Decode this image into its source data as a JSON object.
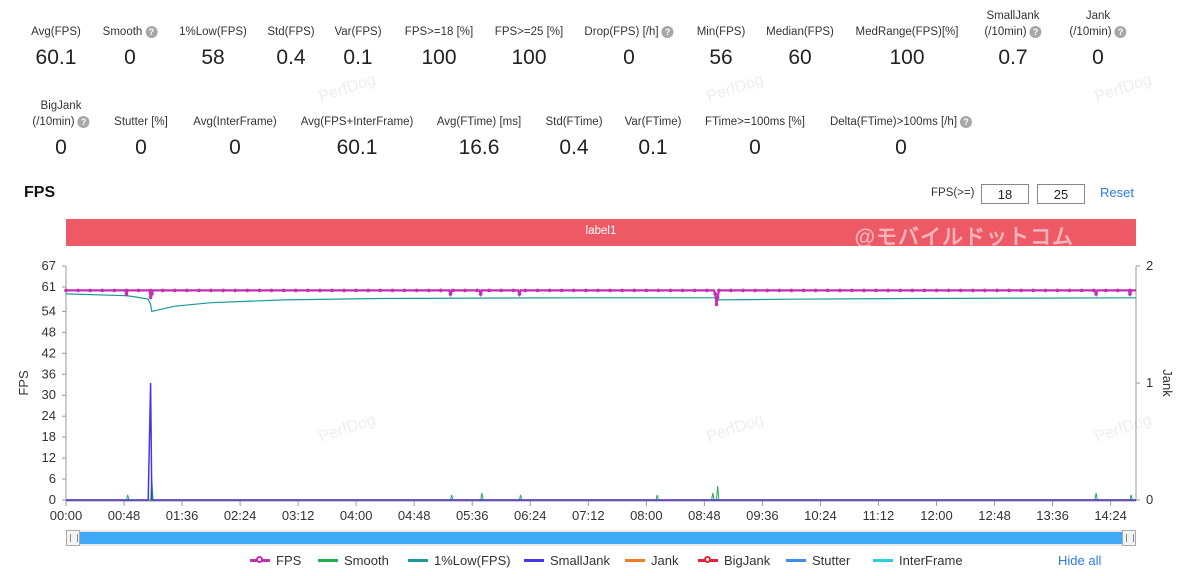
{
  "stats_row1": [
    {
      "label": "Avg(FPS)",
      "value": "60.1",
      "help": false
    },
    {
      "label": "Smooth",
      "value": "0",
      "help": true
    },
    {
      "label": "1%Low(FPS)",
      "value": "58",
      "help": false
    },
    {
      "label": "Std(FPS)",
      "value": "0.4",
      "help": false
    },
    {
      "label": "Var(FPS)",
      "value": "0.1",
      "help": false
    },
    {
      "label": "FPS>=18 [%]",
      "value": "100",
      "help": false
    },
    {
      "label": "FPS>=25 [%]",
      "value": "100",
      "help": false
    },
    {
      "label": "Drop(FPS) [/h]",
      "value": "0",
      "help": true
    },
    {
      "label": "Min(FPS)",
      "value": "56",
      "help": false
    },
    {
      "label": "Median(FPS)",
      "value": "60",
      "help": false
    },
    {
      "label": "MedRange(FPS)[%]",
      "value": "100",
      "help": false
    },
    {
      "label": "SmallJank",
      "label2": "(/10min)",
      "value": "0.7",
      "help": true
    },
    {
      "label": "Jank",
      "label2": "(/10min)",
      "value": "0",
      "help": true
    }
  ],
  "stats_row2": [
    {
      "label": "BigJank",
      "label2": "(/10min)",
      "value": "0",
      "help": true
    },
    {
      "label": "Stutter [%]",
      "value": "0",
      "help": false
    },
    {
      "label": "Avg(InterFrame)",
      "value": "0",
      "help": false
    },
    {
      "label": "Avg(FPS+InterFrame)",
      "value": "60.1",
      "help": false
    },
    {
      "label": "Avg(FTime) [ms]",
      "value": "16.6",
      "help": false
    },
    {
      "label": "Std(FTime)",
      "value": "0.4",
      "help": false
    },
    {
      "label": "Var(FTime)",
      "value": "0.1",
      "help": false
    },
    {
      "label": "FTime>=100ms [%]",
      "value": "0",
      "help": false
    },
    {
      "label": "Delta(FTime)>100ms [/h]",
      "value": "0",
      "help": true
    }
  ],
  "help_glyph": "?",
  "section_title": "FPS",
  "threshold": {
    "label": "FPS(>=)",
    "value1": "18",
    "value2": "25",
    "reset_label": "Reset"
  },
  "label_bar": {
    "text": "label1",
    "overlay": "@モバイルドットコム",
    "color": "#ee5966"
  },
  "watermark": "PerfDog",
  "legend": {
    "items": [
      {
        "name": "FPS",
        "color": "#c42fb2",
        "dot": true
      },
      {
        "name": "Smooth",
        "color": "#22b14c",
        "dot": false
      },
      {
        "name": "1%Low(FPS)",
        "color": "#1a9a98",
        "dot": false
      },
      {
        "name": "SmallJank",
        "color": "#4338e8",
        "dot": false
      },
      {
        "name": "Jank",
        "color": "#f07c25",
        "dot": false
      },
      {
        "name": "BigJank",
        "color": "#e5213a",
        "dot": true
      },
      {
        "name": "Stutter",
        "color": "#3a8ee6",
        "dot": false
      },
      {
        "name": "InterFrame",
        "color": "#2ad2d6",
        "dot": false
      }
    ],
    "hide_all_label": "Hide all"
  },
  "slider": {
    "fill_color": "#3fa9f5"
  },
  "chart_data": {
    "type": "line",
    "y_left": {
      "label": "FPS",
      "ticks": [
        0,
        6,
        12,
        18,
        24,
        30,
        36,
        42,
        48,
        54,
        61,
        67
      ],
      "range": [
        0,
        67
      ]
    },
    "y_right": {
      "label": "Jank",
      "ticks": [
        0,
        1,
        2
      ],
      "range": [
        0,
        2
      ]
    },
    "x_range_seconds": [
      0,
      885
    ],
    "x_ticks": [
      "00:00",
      "00:48",
      "01:36",
      "02:24",
      "03:12",
      "04:00",
      "04:48",
      "05:36",
      "06:24",
      "07:12",
      "08:00",
      "08:48",
      "09:36",
      "10:24",
      "11:12",
      "12:00",
      "12:48",
      "13:36",
      "14:24"
    ],
    "x_tick_seconds": [
      0,
      48,
      96,
      144,
      192,
      240,
      288,
      336,
      384,
      432,
      480,
      528,
      576,
      624,
      672,
      720,
      768,
      816,
      864
    ],
    "grid": false,
    "series": [
      {
        "name": "FPS",
        "color": "#c42fb2",
        "baseline": 60,
        "dips": [
          [
            50,
            59
          ],
          [
            70,
            58
          ],
          [
            71,
            59
          ],
          [
            318,
            59
          ],
          [
            343,
            59
          ],
          [
            375,
            59
          ],
          [
            537,
            59
          ],
          [
            538,
            56
          ],
          [
            539,
            58
          ],
          [
            852,
            59
          ],
          [
            880,
            59
          ]
        ]
      },
      {
        "name": "1%Low(FPS)",
        "color": "#1a9a98",
        "points": [
          [
            0,
            59
          ],
          [
            50,
            58.5
          ],
          [
            60,
            58
          ],
          [
            68,
            57.5
          ],
          [
            70,
            56
          ],
          [
            71,
            54
          ],
          [
            90,
            55.5
          ],
          [
            120,
            56.5
          ],
          [
            180,
            57.3
          ],
          [
            260,
            57.7
          ],
          [
            340,
            57.8
          ],
          [
            420,
            57.9
          ],
          [
            537,
            57.9
          ],
          [
            538,
            57.3
          ],
          [
            600,
            57.5
          ],
          [
            700,
            57.7
          ],
          [
            800,
            57.8
          ],
          [
            885,
            57.9
          ]
        ]
      },
      {
        "name": "SmallJank",
        "color": "#4338e8",
        "points": [
          [
            0,
            0
          ],
          [
            68,
            0
          ],
          [
            70,
            1
          ],
          [
            71,
            0
          ],
          [
            885,
            0
          ]
        ]
      },
      {
        "name": "Smooth",
        "color": "#22b14c",
        "points": [
          [
            0,
            0
          ],
          [
            50,
            0
          ],
          [
            51,
            1.5
          ],
          [
            52,
            0
          ],
          [
            70,
            0
          ],
          [
            71,
            6
          ],
          [
            72,
            0
          ],
          [
            318,
            0
          ],
          [
            319,
            1.5
          ],
          [
            320,
            0
          ],
          [
            343,
            0
          ],
          [
            344,
            2
          ],
          [
            345,
            0
          ],
          [
            375,
            0
          ],
          [
            376,
            1.5
          ],
          [
            377,
            0
          ],
          [
            488,
            0
          ],
          [
            489,
            1.5
          ],
          [
            490,
            0
          ],
          [
            534,
            0
          ],
          [
            535,
            2
          ],
          [
            536,
            0
          ],
          [
            538,
            0
          ],
          [
            539,
            4
          ],
          [
            540,
            0
          ],
          [
            851,
            0
          ],
          [
            852,
            2
          ],
          [
            853,
            0
          ],
          [
            880,
            0
          ],
          [
            881,
            1.5
          ],
          [
            882,
            0
          ],
          [
            885,
            0
          ]
        ]
      },
      {
        "name": "Jank",
        "color": "#f07c25",
        "points": [
          [
            0,
            0
          ],
          [
            885,
            0
          ]
        ]
      },
      {
        "name": "BigJank",
        "color": "#e5213a",
        "points": []
      },
      {
        "name": "Stutter",
        "color": "#3a8ee6",
        "points": []
      },
      {
        "name": "InterFrame",
        "color": "#2ad2d6",
        "points": []
      }
    ]
  }
}
